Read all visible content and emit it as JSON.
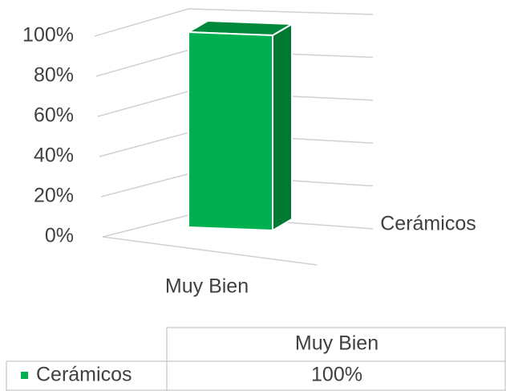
{
  "chart_data": {
    "type": "bar3d",
    "categories": [
      "Muy Bien"
    ],
    "series": [
      {
        "name": "Cerámicos",
        "color": "#00b050",
        "values": [
          100
        ],
        "value_labels": [
          "100%"
        ]
      }
    ],
    "ylim": [
      0,
      100
    ],
    "yticks": [
      {
        "value": 0,
        "label": "0%"
      },
      {
        "value": 20,
        "label": "20%"
      },
      {
        "value": 40,
        "label": "40%"
      },
      {
        "value": 60,
        "label": "60%"
      },
      {
        "value": 80,
        "label": "80%"
      },
      {
        "value": 100,
        "label": "100%"
      }
    ],
    "grid": true,
    "data_table": true
  }
}
